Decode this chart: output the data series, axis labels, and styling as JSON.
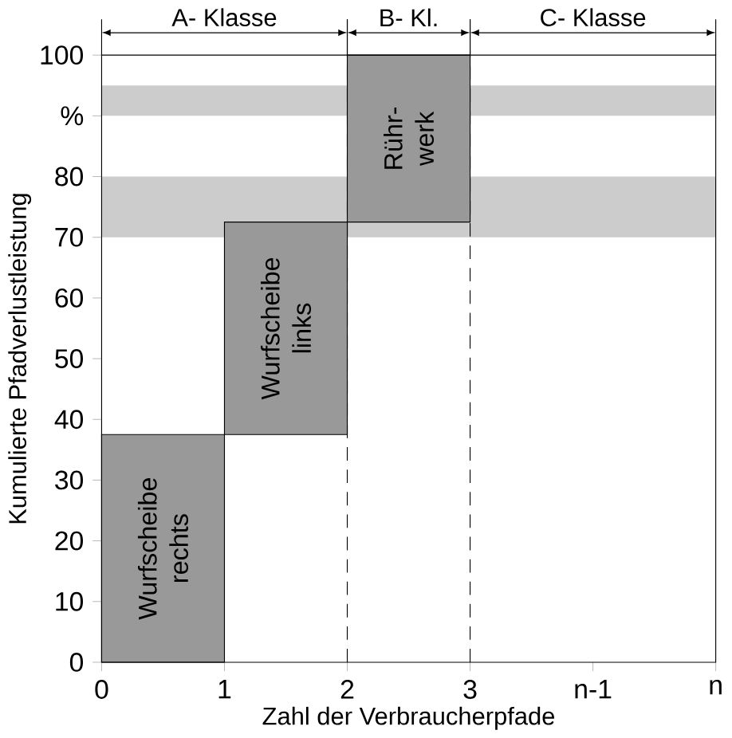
{
  "chart_data": {
    "type": "bar",
    "xlabel": "Zahl der Verbraucherpfade",
    "ylabel": "Kumulierte Pfadverlustleistung",
    "x": [
      0.5,
      1.5,
      2.5
    ],
    "values": [
      37.5,
      35,
      27.5
    ],
    "base": [
      0,
      37.5,
      72.5
    ],
    "color": "#999999",
    "xlim": [
      0,
      5
    ],
    "xticks": [
      0,
      1,
      2,
      3,
      {
        "value": 4,
        "label": "n-1"
      },
      {
        "value": 5,
        "label": "n"
      }
    ],
    "ylim": [
      0,
      100
    ],
    "yticks": [
      0,
      10,
      20,
      30,
      40,
      50,
      60,
      70,
      80,
      {
        "value": 90,
        "label": "%"
      },
      100
    ],
    "bands": [
      {
        "axis": "y",
        "from": 70,
        "to": 80,
        "color": "#cccccc"
      },
      {
        "axis": "y",
        "from": 90,
        "to": 95,
        "color": "#cccccc"
      }
    ],
    "ref_lines": [
      {
        "axis": "x",
        "value": 2,
        "line_style": "dashed"
      },
      {
        "axis": "x",
        "value": 3,
        "line_style": "dashed"
      }
    ],
    "annotations": [
      "Wurfscheibe rechts",
      "Wurfscheibe links",
      "Rühr- werk",
      "A- Klasse",
      "B- Kl.",
      "C- Klasse"
    ],
    "grid": false
  }
}
